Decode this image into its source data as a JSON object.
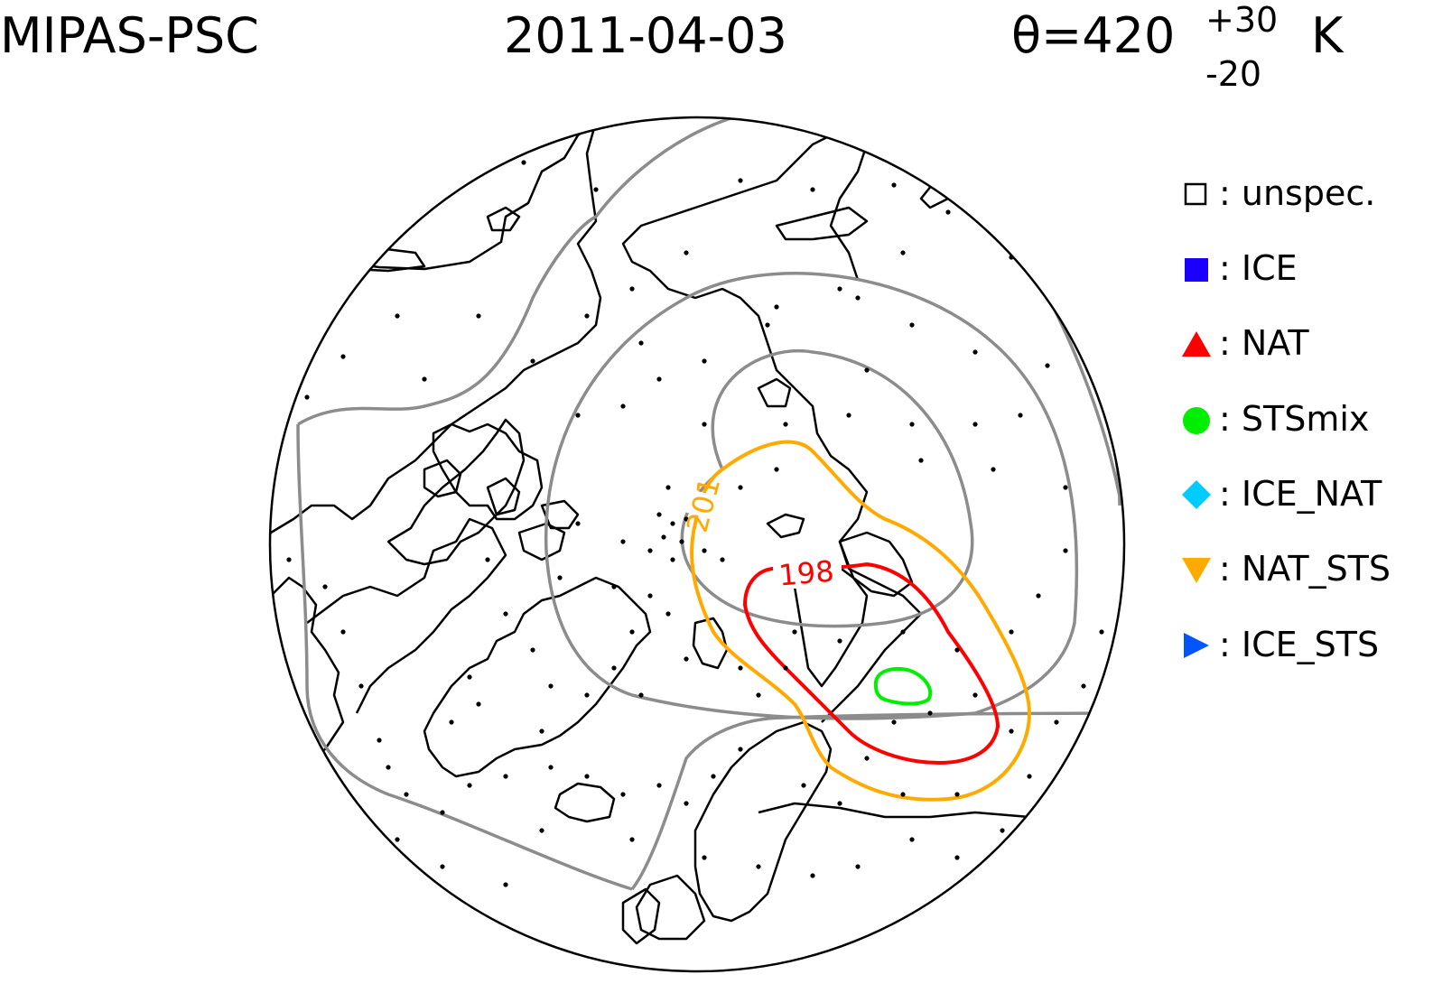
{
  "header": {
    "instrument": "MIPAS-PSC",
    "date": "2011-04-03",
    "theta_prefix": "θ=420",
    "theta_sup": "+30",
    "theta_sub": "-20",
    "theta_unit": "K"
  },
  "contours": {
    "label_orange": "201",
    "label_red": "198",
    "color_grey": "#8c8c8c",
    "color_orange": "#ffaa00",
    "color_red": "#ff0000",
    "color_green": "#00ee00"
  },
  "legend": [
    {
      "symbol": "open-square",
      "color": "#000000",
      "label": ": unspec."
    },
    {
      "symbol": "filled-square",
      "color": "#1a00ff",
      "label": ": ICE"
    },
    {
      "symbol": "triangle-up",
      "color": "#ff0000",
      "label": ": NAT"
    },
    {
      "symbol": "circle",
      "color": "#00ee00",
      "label": ": STSmix"
    },
    {
      "symbol": "diamond",
      "color": "#00ccff",
      "label": ": ICE_NAT"
    },
    {
      "symbol": "triangle-down",
      "color": "#ffaa00",
      "label": ": NAT_STS"
    },
    {
      "symbol": "triangle-right",
      "color": "#0055ff",
      "label": ": ICE_STS"
    }
  ]
}
